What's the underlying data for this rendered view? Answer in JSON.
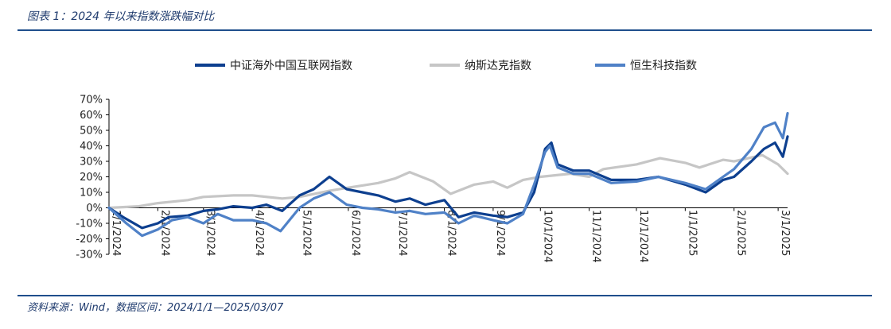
{
  "figure": {
    "title": "图表 1：2024 年以来指数涨跌幅对比",
    "source": "资料来源：Wind，数据区间：2024/1/1—2025/03/07"
  },
  "chart_data": {
    "type": "line",
    "x_type": "date",
    "x_ticks": [
      "1/1/2024",
      "2/1/2024",
      "3/1/2024",
      "4/1/2024",
      "5/1/2024",
      "6/1/2024",
      "7/1/2024",
      "8/1/2024",
      "9/1/2024",
      "10/1/2024",
      "11/1/2024",
      "12/1/2024",
      "1/1/2025",
      "2/1/2025",
      "3/1/2025"
    ],
    "y_ticks": [
      "70%",
      "60%",
      "50%",
      "40%",
      "30%",
      "20%",
      "10%",
      "0%",
      "-10%",
      "-20%",
      "-30%"
    ],
    "ylim": [
      -30,
      70
    ],
    "xlim": [
      "2024-01-01",
      "2025-03-07"
    ],
    "legend_position": "top",
    "grid": false,
    "series": [
      {
        "name": "中证海外中国互联网指数",
        "color": "#0d3f8f",
        "points": [
          [
            "2024-01-01",
            0
          ],
          [
            "2024-01-10",
            -6
          ],
          [
            "2024-01-22",
            -13
          ],
          [
            "2024-02-01",
            -10
          ],
          [
            "2024-02-08",
            -6
          ],
          [
            "2024-02-20",
            -5
          ],
          [
            "2024-03-01",
            -2
          ],
          [
            "2024-03-10",
            -1
          ],
          [
            "2024-03-20",
            1
          ],
          [
            "2024-04-01",
            0
          ],
          [
            "2024-04-10",
            2
          ],
          [
            "2024-04-20",
            -2
          ],
          [
            "2024-05-01",
            8
          ],
          [
            "2024-05-10",
            12
          ],
          [
            "2024-05-20",
            20
          ],
          [
            "2024-05-31",
            12
          ],
          [
            "2024-06-10",
            10
          ],
          [
            "2024-06-20",
            8
          ],
          [
            "2024-07-01",
            4
          ],
          [
            "2024-07-10",
            6
          ],
          [
            "2024-07-20",
            2
          ],
          [
            "2024-08-01",
            5
          ],
          [
            "2024-08-10",
            -6
          ],
          [
            "2024-08-20",
            -3
          ],
          [
            "2024-09-01",
            -5
          ],
          [
            "2024-09-10",
            -6
          ],
          [
            "2024-09-20",
            -3
          ],
          [
            "2024-09-27",
            10
          ],
          [
            "2024-10-04",
            38
          ],
          [
            "2024-10-08",
            42
          ],
          [
            "2024-10-12",
            28
          ],
          [
            "2024-10-22",
            24
          ],
          [
            "2024-11-01",
            24
          ],
          [
            "2024-11-15",
            18
          ],
          [
            "2024-12-01",
            18
          ],
          [
            "2024-12-15",
            20
          ],
          [
            "2025-01-01",
            15
          ],
          [
            "2025-01-14",
            10
          ],
          [
            "2025-01-25",
            18
          ],
          [
            "2025-02-01",
            20
          ],
          [
            "2025-02-12",
            30
          ],
          [
            "2025-02-20",
            38
          ],
          [
            "2025-02-27",
            42
          ],
          [
            "2025-03-04",
            33
          ],
          [
            "2025-03-07",
            46
          ]
        ]
      },
      {
        "name": "纳斯达克指数",
        "color": "#c6c6c6",
        "points": [
          [
            "2024-01-01",
            0
          ],
          [
            "2024-01-20",
            1
          ],
          [
            "2024-02-01",
            3
          ],
          [
            "2024-02-20",
            5
          ],
          [
            "2024-03-01",
            7
          ],
          [
            "2024-03-20",
            8
          ],
          [
            "2024-04-01",
            8
          ],
          [
            "2024-04-20",
            6
          ],
          [
            "2024-05-01",
            7
          ],
          [
            "2024-05-20",
            11
          ],
          [
            "2024-06-01",
            13
          ],
          [
            "2024-06-20",
            16
          ],
          [
            "2024-07-01",
            19
          ],
          [
            "2024-07-10",
            23
          ],
          [
            "2024-07-25",
            17
          ],
          [
            "2024-08-05",
            9
          ],
          [
            "2024-08-20",
            15
          ],
          [
            "2024-09-01",
            17
          ],
          [
            "2024-09-10",
            13
          ],
          [
            "2024-09-20",
            18
          ],
          [
            "2024-10-01",
            20
          ],
          [
            "2024-10-20",
            22
          ],
          [
            "2024-11-01",
            20
          ],
          [
            "2024-11-10",
            25
          ],
          [
            "2024-12-01",
            28
          ],
          [
            "2024-12-16",
            32
          ],
          [
            "2025-01-01",
            29
          ],
          [
            "2025-01-10",
            26
          ],
          [
            "2025-01-25",
            31
          ],
          [
            "2025-02-01",
            30
          ],
          [
            "2025-02-19",
            34
          ],
          [
            "2025-03-01",
            28
          ],
          [
            "2025-03-07",
            22
          ]
        ]
      },
      {
        "name": "恒生科技指数",
        "color": "#4f81c7",
        "points": [
          [
            "2024-01-01",
            0
          ],
          [
            "2024-01-12",
            -10
          ],
          [
            "2024-01-22",
            -18
          ],
          [
            "2024-02-01",
            -14
          ],
          [
            "2024-02-10",
            -8
          ],
          [
            "2024-02-20",
            -6
          ],
          [
            "2024-03-01",
            -10
          ],
          [
            "2024-03-10",
            -4
          ],
          [
            "2024-03-20",
            -8
          ],
          [
            "2024-04-01",
            -8
          ],
          [
            "2024-04-10",
            -10
          ],
          [
            "2024-04-19",
            -15
          ],
          [
            "2024-05-01",
            0
          ],
          [
            "2024-05-10",
            6
          ],
          [
            "2024-05-20",
            10
          ],
          [
            "2024-05-31",
            2
          ],
          [
            "2024-06-10",
            0
          ],
          [
            "2024-06-20",
            -1
          ],
          [
            "2024-07-01",
            -3
          ],
          [
            "2024-07-10",
            -2
          ],
          [
            "2024-07-20",
            -4
          ],
          [
            "2024-08-01",
            -3
          ],
          [
            "2024-08-10",
            -10
          ],
          [
            "2024-08-20",
            -5
          ],
          [
            "2024-09-01",
            -8
          ],
          [
            "2024-09-10",
            -10
          ],
          [
            "2024-09-20",
            -4
          ],
          [
            "2024-09-27",
            15
          ],
          [
            "2024-10-04",
            36
          ],
          [
            "2024-10-07",
            40
          ],
          [
            "2024-10-12",
            26
          ],
          [
            "2024-10-22",
            22
          ],
          [
            "2024-11-01",
            22
          ],
          [
            "2024-11-15",
            16
          ],
          [
            "2024-12-01",
            17
          ],
          [
            "2024-12-15",
            20
          ],
          [
            "2025-01-01",
            16
          ],
          [
            "2025-01-14",
            12
          ],
          [
            "2025-01-25",
            20
          ],
          [
            "2025-02-01",
            25
          ],
          [
            "2025-02-12",
            38
          ],
          [
            "2025-02-20",
            52
          ],
          [
            "2025-02-27",
            55
          ],
          [
            "2025-03-04",
            45
          ],
          [
            "2025-03-07",
            61
          ]
        ]
      }
    ]
  }
}
